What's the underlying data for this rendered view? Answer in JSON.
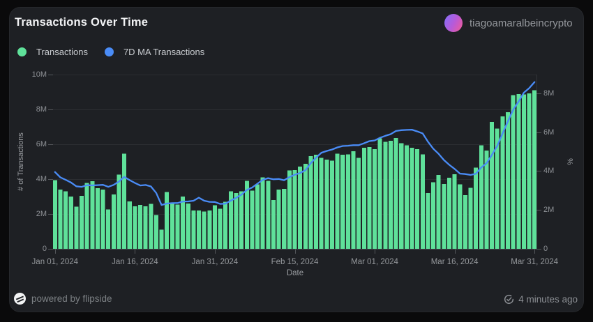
{
  "app": {
    "title": "Transactions Over Time",
    "user": {
      "name": "tiagoamaralbeincrypto"
    },
    "footer": {
      "powered_by": "powered by flipside",
      "last_updated": "4 minutes ago"
    }
  },
  "legend": {
    "items": [
      {
        "label": "Transactions",
        "color": "#5fe19a"
      },
      {
        "label": "7D MA Transactions",
        "color": "#4a8cf7"
      }
    ]
  },
  "colors": {
    "background": "#0a0a0b",
    "card": "#1e2024",
    "bar_green": "#5fe19a",
    "line_blue": "#4a8cf7",
    "grid": "#2c2e32",
    "baseline": "#47494e",
    "axis_text": "#8d9095",
    "avatar_gradient": [
      "#8a6cf5",
      "#ea5b9e"
    ]
  },
  "chart_data": {
    "type": "bar",
    "title": "Transactions Over Time",
    "xlabel": "Date",
    "ylabel_left": "# of Transactions",
    "ylabel_right": "%",
    "grid": "horizontal",
    "legend_position": "top-left",
    "ylim_left_m": [
      0,
      10
    ],
    "ylim_right_m": [
      0,
      9
    ],
    "y_left_ticks": [
      "0",
      "2M",
      "4M",
      "6M",
      "8M",
      "10M"
    ],
    "y_right_ticks": [
      "0",
      "2M",
      "4M",
      "6M",
      "8M"
    ],
    "x_tick_labels": [
      "Jan 01, 2024",
      "Jan 16, 2024",
      "Jan 31, 2024",
      "Feb 15, 2024",
      "Mar 01, 2024",
      "Mar 16, 2024",
      "Mar 31, 2024"
    ],
    "x_tick_day_index": [
      0,
      15,
      30,
      45,
      60,
      75,
      90
    ],
    "dates": [
      "Jan 01",
      "Jan 02",
      "Jan 03",
      "Jan 04",
      "Jan 05",
      "Jan 06",
      "Jan 07",
      "Jan 08",
      "Jan 09",
      "Jan 10",
      "Jan 11",
      "Jan 12",
      "Jan 13",
      "Jan 14",
      "Jan 15",
      "Jan 16",
      "Jan 17",
      "Jan 18",
      "Jan 19",
      "Jan 20",
      "Jan 21",
      "Jan 22",
      "Jan 23",
      "Jan 24",
      "Jan 25",
      "Jan 26",
      "Jan 27",
      "Jan 28",
      "Jan 29",
      "Jan 30",
      "Jan 31",
      "Feb 01",
      "Feb 02",
      "Feb 03",
      "Feb 04",
      "Feb 05",
      "Feb 06",
      "Feb 07",
      "Feb 08",
      "Feb 09",
      "Feb 10",
      "Feb 11",
      "Feb 12",
      "Feb 13",
      "Feb 14",
      "Feb 15",
      "Feb 16",
      "Feb 17",
      "Feb 18",
      "Feb 19",
      "Feb 20",
      "Feb 21",
      "Feb 22",
      "Feb 23",
      "Feb 24",
      "Feb 25",
      "Feb 26",
      "Feb 27",
      "Feb 28",
      "Feb 29",
      "Mar 01",
      "Mar 02",
      "Mar 03",
      "Mar 04",
      "Mar 05",
      "Mar 06",
      "Mar 07",
      "Mar 08",
      "Mar 09",
      "Mar 10",
      "Mar 11",
      "Mar 12",
      "Mar 13",
      "Mar 14",
      "Mar 15",
      "Mar 16",
      "Mar 17",
      "Mar 18",
      "Mar 19",
      "Mar 20",
      "Mar 21",
      "Mar 22",
      "Mar 23",
      "Mar 24",
      "Mar 25",
      "Mar 26",
      "Mar 27",
      "Mar 28",
      "Mar 29",
      "Mar 30",
      "Mar 31"
    ],
    "series": [
      {
        "name": "Transactions",
        "type": "bar",
        "axis": "left",
        "color": "#5fe19a",
        "unit": "M",
        "values_m": [
          3.95,
          3.4,
          3.3,
          3.0,
          2.42,
          3.05,
          3.79,
          3.88,
          3.49,
          3.41,
          2.27,
          3.12,
          4.26,
          5.47,
          2.72,
          2.45,
          2.52,
          2.45,
          2.58,
          1.94,
          1.11,
          3.26,
          2.6,
          2.55,
          3.0,
          2.6,
          2.2,
          2.2,
          2.15,
          2.2,
          2.5,
          2.3,
          2.7,
          3.3,
          3.2,
          3.3,
          3.9,
          3.35,
          3.7,
          4.1,
          3.9,
          2.8,
          3.4,
          3.45,
          4.5,
          4.52,
          4.73,
          4.89,
          5.33,
          5.4,
          5.22,
          5.13,
          5.06,
          5.47,
          5.4,
          5.43,
          5.6,
          5.22,
          5.8,
          5.84,
          5.73,
          6.34,
          6.14,
          6.2,
          6.37,
          6.07,
          5.95,
          5.8,
          5.73,
          5.43,
          3.21,
          3.83,
          4.24,
          3.72,
          4.08,
          4.28,
          3.7,
          3.08,
          3.5,
          4.66,
          5.95,
          5.65,
          7.28,
          6.9,
          7.61,
          7.84,
          8.82,
          8.88,
          8.86,
          8.93,
          9.11
        ]
      },
      {
        "name": "7D MA Transactions",
        "type": "line",
        "axis": "right",
        "color": "#4a8cf7",
        "derivation": "trailing 7-day mean of Transactions"
      }
    ]
  }
}
